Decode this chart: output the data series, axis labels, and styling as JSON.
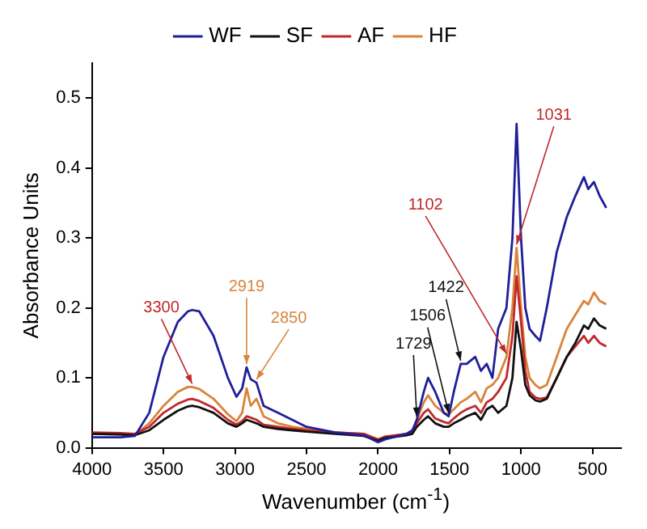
{
  "chart_data": {
    "type": "line",
    "xlabel": "Wavenumber (cm$^{-1}$)",
    "ylabel": "Absorbance Units",
    "x": [
      4000,
      3800,
      3700,
      3600,
      3500,
      3400,
      3330,
      3300,
      3250,
      3150,
      3050,
      2990,
      2950,
      2919,
      2890,
      2850,
      2800,
      2700,
      2600,
      2500,
      2300,
      2100,
      2000,
      1950,
      1800,
      1760,
      1729,
      1680,
      1650,
      1600,
      1540,
      1506,
      1470,
      1422,
      1380,
      1320,
      1280,
      1240,
      1200,
      1160,
      1102,
      1060,
      1031,
      1000,
      970,
      940,
      900,
      867,
      820,
      750,
      680,
      620,
      560,
      530,
      490,
      450,
      404
    ],
    "series": [
      {
        "name": "WF",
        "color": "#1f1f9a",
        "values": [
          0.015,
          0.015,
          0.017,
          0.05,
          0.13,
          0.18,
          0.195,
          0.197,
          0.195,
          0.16,
          0.1,
          0.073,
          0.085,
          0.115,
          0.098,
          0.093,
          0.06,
          0.05,
          0.04,
          0.03,
          0.022,
          0.018,
          0.008,
          0.012,
          0.02,
          0.025,
          0.04,
          0.08,
          0.1,
          0.08,
          0.05,
          0.045,
          0.08,
          0.12,
          0.12,
          0.13,
          0.11,
          0.12,
          0.1,
          0.17,
          0.2,
          0.3,
          0.463,
          0.3,
          0.2,
          0.17,
          0.16,
          0.153,
          0.2,
          0.28,
          0.33,
          0.36,
          0.387,
          0.37,
          0.38,
          0.36,
          0.343
        ]
      },
      {
        "name": "SF",
        "color": "#111111",
        "values": [
          0.02,
          0.019,
          0.018,
          0.025,
          0.04,
          0.053,
          0.059,
          0.06,
          0.058,
          0.05,
          0.035,
          0.03,
          0.035,
          0.04,
          0.038,
          0.035,
          0.03,
          0.027,
          0.025,
          0.023,
          0.02,
          0.017,
          0.01,
          0.014,
          0.018,
          0.02,
          0.03,
          0.04,
          0.045,
          0.035,
          0.03,
          0.03,
          0.035,
          0.04,
          0.045,
          0.05,
          0.04,
          0.055,
          0.06,
          0.05,
          0.06,
          0.1,
          0.18,
          0.14,
          0.09,
          0.075,
          0.068,
          0.066,
          0.07,
          0.1,
          0.13,
          0.15,
          0.175,
          0.17,
          0.185,
          0.175,
          0.17
        ]
      },
      {
        "name": "AF",
        "color": "#c0282a",
        "values": [
          0.022,
          0.021,
          0.02,
          0.03,
          0.05,
          0.063,
          0.069,
          0.07,
          0.067,
          0.057,
          0.04,
          0.033,
          0.038,
          0.045,
          0.043,
          0.04,
          0.033,
          0.03,
          0.027,
          0.025,
          0.022,
          0.02,
          0.012,
          0.016,
          0.02,
          0.022,
          0.035,
          0.05,
          0.055,
          0.042,
          0.037,
          0.035,
          0.042,
          0.05,
          0.055,
          0.06,
          0.05,
          0.065,
          0.07,
          0.08,
          0.1,
          0.16,
          0.245,
          0.18,
          0.11,
          0.08,
          0.072,
          0.07,
          0.072,
          0.1,
          0.13,
          0.145,
          0.16,
          0.15,
          0.16,
          0.15,
          0.145
        ]
      },
      {
        "name": "HF",
        "color": "#d9843a",
        "values": [
          0.02,
          0.019,
          0.018,
          0.035,
          0.06,
          0.08,
          0.087,
          0.087,
          0.084,
          0.07,
          0.048,
          0.038,
          0.05,
          0.085,
          0.06,
          0.07,
          0.045,
          0.035,
          0.03,
          0.027,
          0.022,
          0.02,
          0.012,
          0.016,
          0.02,
          0.023,
          0.04,
          0.065,
          0.075,
          0.06,
          0.05,
          0.048,
          0.055,
          0.065,
          0.07,
          0.08,
          0.065,
          0.085,
          0.09,
          0.1,
          0.13,
          0.2,
          0.286,
          0.2,
          0.13,
          0.1,
          0.09,
          0.085,
          0.09,
          0.13,
          0.17,
          0.19,
          0.21,
          0.205,
          0.222,
          0.21,
          0.205
        ]
      }
    ],
    "xlim": [
      4000,
      300
    ],
    "xticks": [
      4000,
      3500,
      3000,
      2500,
      2000,
      1500,
      1000,
      500
    ],
    "ylim": [
      0,
      0.55
    ],
    "yticks": [
      {
        "value": 0,
        "label": "0.0"
      },
      0.1,
      0.2,
      0.3,
      0.4,
      0.5
    ],
    "grid": false,
    "legend": "top",
    "marker": "none",
    "line_style": "solid",
    "annotations": [
      {
        "text": "3300",
        "x": 3300,
        "y": 0.087
      },
      {
        "text": "2919",
        "x": 2919,
        "y": 0.115
      },
      {
        "text": "2850",
        "x": 2850,
        "y": 0.093
      },
      {
        "text": "1729",
        "x": 1729,
        "y": 0.04
      },
      {
        "text": "1506",
        "x": 1506,
        "y": 0.045
      },
      {
        "text": "1422",
        "x": 1422,
        "y": 0.12
      },
      {
        "text": "1102",
        "x": 1102,
        "y": 0.13
      },
      {
        "text": "1031",
        "x": 1031,
        "y": 0.286
      }
    ]
  }
}
